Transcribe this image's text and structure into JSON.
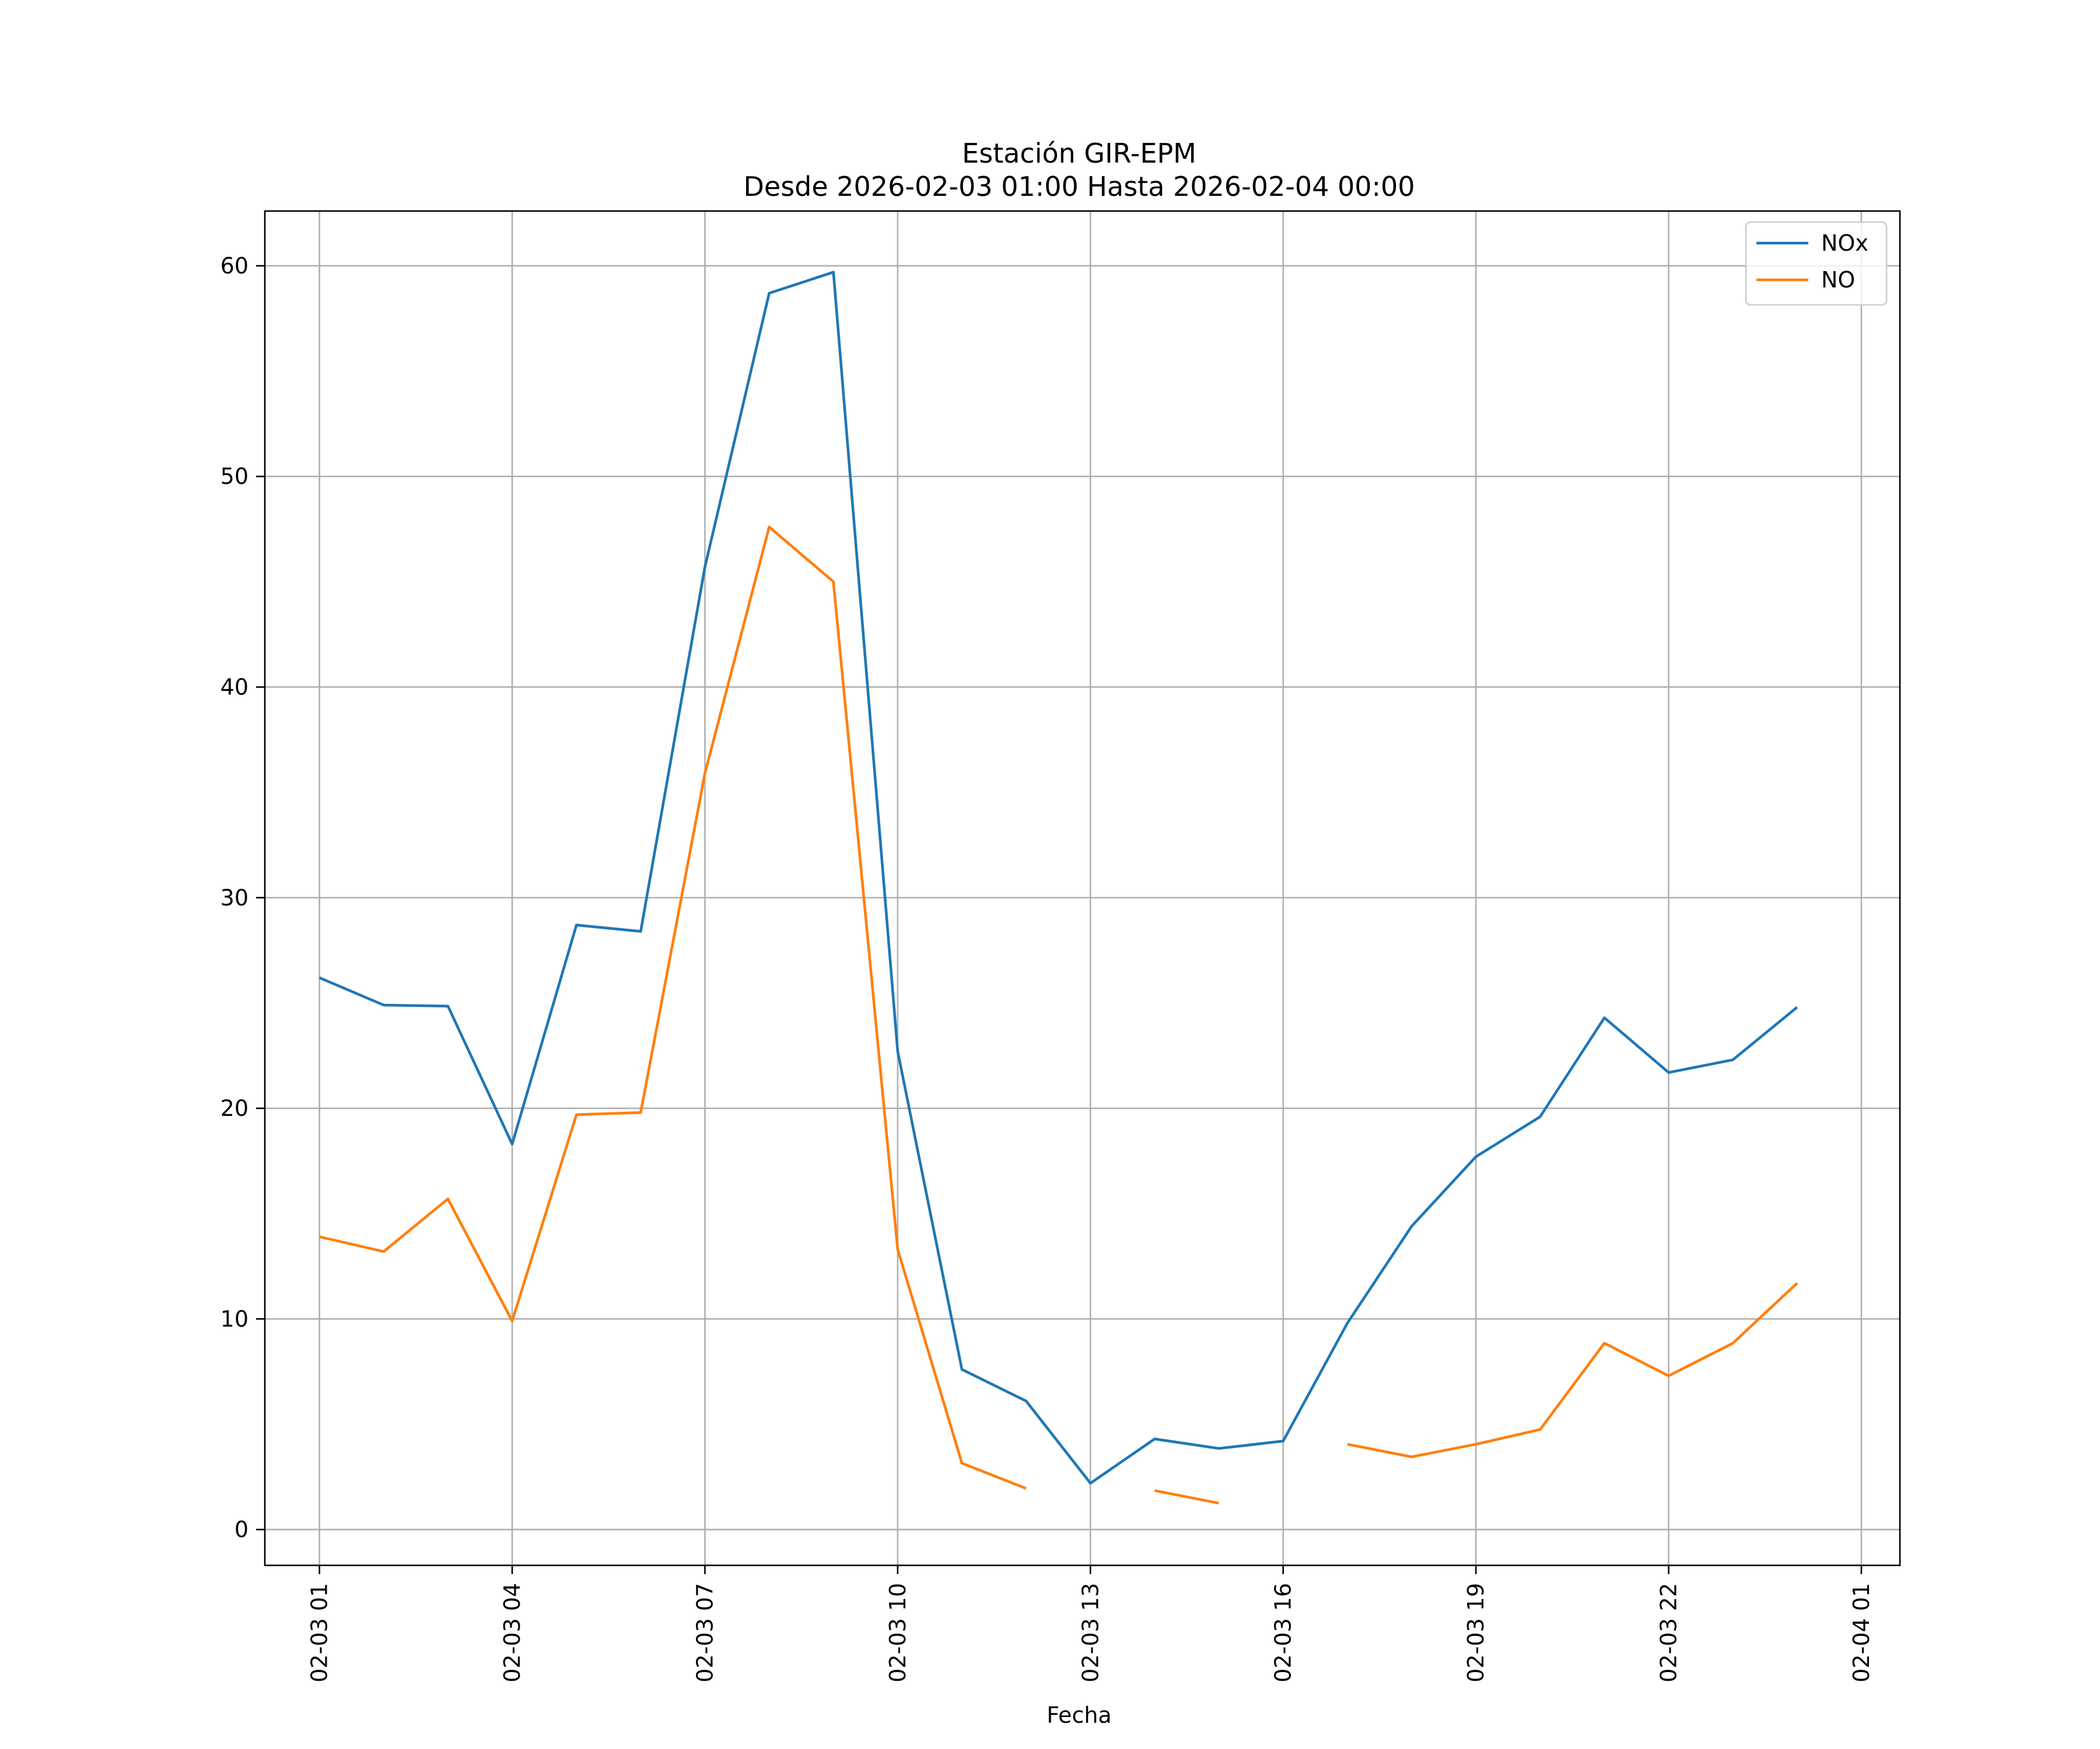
{
  "chart_data": {
    "type": "line",
    "title": "Estación GIR-EPM",
    "subtitle": "Desde 2026-02-03 01:00 Hasta 2026-02-04 00:00",
    "xlabel": "Fecha",
    "ylabel": "",
    "ylim": [
      -1.7,
      62.6
    ],
    "xlim_hours": [
      -0.85,
      24.6
    ],
    "x_hours": [
      0,
      1,
      2,
      3,
      4,
      5,
      6,
      7,
      8,
      9,
      10,
      11,
      12,
      13,
      14,
      15,
      16,
      17,
      18,
      19,
      20,
      21,
      22,
      23
    ],
    "x_tick_labels": [
      "02-03 01",
      "02-03 04",
      "02-03 07",
      "02-03 10",
      "02-03 13",
      "02-03 16",
      "02-03 19",
      "02-03 22",
      "02-04 01"
    ],
    "x_tick_hours": [
      0,
      3,
      6,
      9,
      12,
      15,
      18,
      21,
      24
    ],
    "y_ticks": [
      0,
      10,
      20,
      30,
      40,
      50,
      60
    ],
    "y_tick_labels": [
      "0",
      "10",
      "20",
      "30",
      "40",
      "50",
      "60"
    ],
    "grid": true,
    "legend": "top-right",
    "series": [
      {
        "name": "NOx",
        "color": "#1f77b4",
        "values": [
          26.2,
          24.9,
          24.85,
          18.3,
          28.7,
          28.4,
          45.7,
          58.7,
          59.7,
          22.7,
          7.6,
          6.1,
          2.2,
          4.3,
          3.85,
          4.2,
          9.8,
          14.4,
          17.7,
          19.6,
          24.3,
          21.7,
          22.3,
          24.8
        ]
      },
      {
        "name": "NO",
        "color": "#ff7f0e",
        "values": [
          13.9,
          13.2,
          15.7,
          9.9,
          19.7,
          19.8,
          35.9,
          47.6,
          45.0,
          13.3,
          3.15,
          1.95,
          null,
          1.85,
          1.25,
          null,
          4.05,
          3.45,
          4.05,
          4.75,
          8.85,
          7.3,
          8.85,
          11.7
        ]
      }
    ]
  }
}
